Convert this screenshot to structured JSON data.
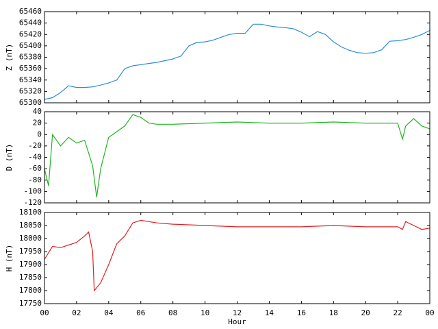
{
  "chart_data": [
    {
      "type": "line",
      "ylabel": "Z (nT)",
      "xlim": [
        0,
        24
      ],
      "ylim": [
        65300,
        65460
      ],
      "yticks": [
        65300,
        65320,
        65340,
        65360,
        65380,
        65400,
        65420,
        65440,
        65460
      ],
      "x": [
        0,
        0.5,
        1,
        1.5,
        2,
        2.5,
        3,
        3.5,
        4,
        4.5,
        5,
        5.5,
        6,
        6.5,
        7,
        7.5,
        8,
        8.5,
        9,
        9.5,
        10,
        10.5,
        11,
        11.5,
        12,
        12.5,
        13,
        13.5,
        14,
        14.5,
        15,
        15.5,
        16,
        16.5,
        17,
        17.5,
        18,
        18.5,
        19,
        19.5,
        20,
        20.5,
        21,
        21.5,
        22,
        22.5,
        23,
        23.5,
        24
      ],
      "series": [
        {
          "color": "#2a8ae0",
          "values": [
            65306,
            65309,
            65318,
            65330,
            65327,
            65327,
            65328,
            65331,
            65335,
            65340,
            65360,
            65365,
            65367,
            65369,
            65371,
            65374,
            65377,
            65382,
            65400,
            65406,
            65407,
            65410,
            65415,
            65420,
            65422,
            65422,
            65438,
            65438,
            65435,
            65433,
            65432,
            65430,
            65424,
            65416,
            65425,
            65420,
            65407,
            65398,
            65392,
            65388,
            65387,
            65388,
            65393,
            65408,
            65409,
            65411,
            65415,
            65420,
            65427
          ]
        }
      ]
    },
    {
      "type": "line",
      "ylabel": "D (nT)",
      "xlim": [
        0,
        24
      ],
      "ylim": [
        -120,
        40
      ],
      "yticks": [
        -120,
        -100,
        -80,
        -60,
        -40,
        -20,
        0,
        20,
        40
      ],
      "x": [
        0,
        0.25,
        0.5,
        1,
        1.5,
        2,
        2.5,
        3,
        3.25,
        3.5,
        4,
        4.5,
        5,
        5.5,
        6,
        6.5,
        7,
        7.5,
        8,
        10,
        12,
        14,
        16,
        18,
        20,
        22,
        22.3,
        22.5,
        23,
        23.5,
        24
      ],
      "series": [
        {
          "color": "#22b422",
          "values": [
            -60,
            -90,
            0,
            -20,
            -5,
            -15,
            -10,
            -55,
            -110,
            -60,
            -5,
            5,
            15,
            35,
            30,
            20,
            18,
            18,
            18,
            20,
            22,
            20,
            20,
            22,
            20,
            20,
            -8,
            15,
            28,
            15,
            10
          ]
        }
      ]
    },
    {
      "type": "line",
      "ylabel": "H (nT)",
      "xlabel": "Hour",
      "xlim": [
        0,
        24
      ],
      "ylim": [
        17750,
        18100
      ],
      "yticks": [
        17750,
        17800,
        17850,
        17900,
        17950,
        18000,
        18050,
        18100
      ],
      "xticks": [
        {
          "value": 0,
          "label": "00"
        },
        {
          "value": 2,
          "label": "02"
        },
        {
          "value": 4,
          "label": "04"
        },
        {
          "value": 6,
          "label": "06"
        },
        {
          "value": 8,
          "label": "08"
        },
        10,
        12,
        14,
        16,
        18,
        20,
        22,
        {
          "value": 24,
          "label": "00"
        }
      ],
      "x": [
        0,
        0.5,
        1,
        1.5,
        2,
        2.5,
        2.75,
        3,
        3.1,
        3.5,
        4,
        4.5,
        5,
        5.5,
        6,
        6.5,
        7,
        8,
        10,
        12,
        14,
        16,
        18,
        20,
        22,
        22.3,
        22.5,
        23,
        23.5,
        24
      ],
      "series": [
        {
          "color": "#e02020",
          "values": [
            17920,
            17970,
            17965,
            17975,
            17985,
            18010,
            18025,
            17950,
            17800,
            17830,
            17900,
            17980,
            18010,
            18060,
            18070,
            18065,
            18060,
            18055,
            18050,
            18045,
            18045,
            18045,
            18050,
            18045,
            18045,
            18035,
            18065,
            18050,
            18035,
            18040
          ]
        }
      ]
    }
  ]
}
